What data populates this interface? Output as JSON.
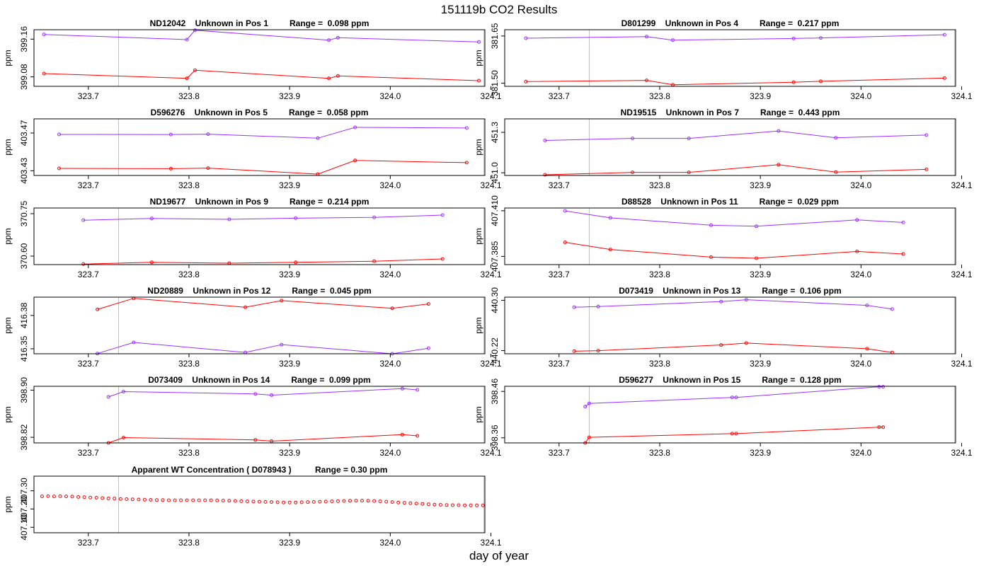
{
  "page_title": "151119b  CO2 Results",
  "x_axis_label": "day of year",
  "colors": {
    "upper": "#9b30ff",
    "lower": "#ff0000",
    "ref_line": "#bebebe",
    "axis": "#000000"
  },
  "chart_data": [
    {
      "type": "line",
      "title": "ND12042    Unknown in Pos 1         Range =  0.098 ppm",
      "ylabel": "ppm",
      "xlim": [
        323.646,
        324.094
      ],
      "ylim": [
        399.06,
        399.18
      ],
      "xticks": [
        "323.7",
        "323.8",
        "323.9",
        "324.0",
        "324.1"
      ],
      "yticks": [
        "399.08",
        "399.16"
      ],
      "ref_lines": [
        323.73,
        324.093
      ],
      "series": [
        {
          "name": "upper",
          "x": [
            323.656,
            323.798,
            323.806,
            323.939,
            323.948,
            324.088
          ],
          "y": [
            399.17,
            399.159,
            399.179,
            399.158,
            399.163,
            399.154
          ]
        },
        {
          "name": "lower",
          "x": [
            323.656,
            323.798,
            323.806,
            323.939,
            323.948,
            324.088
          ],
          "y": [
            399.087,
            399.077,
            399.094,
            399.077,
            399.082,
            399.072
          ]
        }
      ]
    },
    {
      "type": "line",
      "title": "D801299    Unknown in Pos 4         Range =  0.217 ppm",
      "ylabel": "ppm",
      "xlim": [
        323.646,
        324.094
      ],
      "ylim": [
        381.49,
        381.67
      ],
      "xticks": [
        "323.7",
        "323.8",
        "323.9",
        "324.0",
        "324.1"
      ],
      "yticks": [
        "381.50",
        "381.65"
      ],
      "ref_lines": [
        323.73,
        324.093
      ],
      "series": [
        {
          "name": "upper",
          "x": [
            323.667,
            323.787,
            323.813,
            323.933,
            323.96,
            324.083
          ],
          "y": [
            381.643,
            381.648,
            381.637,
            381.642,
            381.644,
            381.654
          ]
        },
        {
          "name": "lower",
          "x": [
            323.667,
            323.787,
            323.813,
            323.933,
            323.96,
            324.083
          ],
          "y": [
            381.505,
            381.509,
            381.495,
            381.503,
            381.506,
            381.516
          ]
        }
      ]
    },
    {
      "type": "line",
      "title": "D596276    Unknown in Pos 5         Range =  0.058 ppm",
      "ylabel": "ppm",
      "xlim": [
        323.646,
        324.094
      ],
      "ylim": [
        403.425,
        403.485
      ],
      "xticks": [
        "323.7",
        "323.8",
        "323.9",
        "324.0",
        "324.1"
      ],
      "yticks": [
        "403.43",
        "403.47"
      ],
      "ref_lines": [
        323.73,
        324.093
      ],
      "series": [
        {
          "name": "upper",
          "x": [
            323.671,
            323.782,
            323.819,
            323.928,
            323.965,
            324.076
          ],
          "y": [
            403.4685,
            403.4684,
            403.4688,
            403.4645,
            403.476,
            403.4753
          ]
        },
        {
          "name": "lower",
          "x": [
            323.671,
            323.782,
            323.819,
            323.928,
            323.965,
            324.076
          ],
          "y": [
            403.4325,
            403.4322,
            403.4328,
            403.4264,
            403.4409,
            403.4386
          ]
        }
      ]
    },
    {
      "type": "line",
      "title": "ND19515    Unknown in Pos 7         Range =  0.443 ppm",
      "ylabel": "ppm",
      "xlim": [
        323.646,
        324.094
      ],
      "ylim": [
        450.98,
        451.4
      ],
      "xticks": [
        "323.7",
        "323.8",
        "323.9",
        "324.0",
        "324.1"
      ],
      "yticks": [
        "451.0",
        "451.3"
      ],
      "ref_lines": [
        323.73,
        324.093
      ],
      "series": [
        {
          "name": "upper",
          "x": [
            323.686,
            323.773,
            323.829,
            323.918,
            323.975,
            324.065
          ],
          "y": [
            451.24,
            451.255,
            451.255,
            451.31,
            451.26,
            451.28
          ]
        },
        {
          "name": "lower",
          "x": [
            323.686,
            323.773,
            323.829,
            323.918,
            323.975,
            324.065
          ],
          "y": [
            450.985,
            451.003,
            451.003,
            451.06,
            451.005,
            451.025
          ]
        }
      ]
    },
    {
      "type": "line",
      "title": "ND19677    Unknown in Pos 9         Range =  0.214 ppm",
      "ylabel": "ppm",
      "xlim": [
        323.646,
        324.094
      ],
      "ylim": [
        370.57,
        370.77
      ],
      "xticks": [
        "323.7",
        "323.8",
        "323.9",
        "324.0",
        "324.1"
      ],
      "yticks": [
        "370.60",
        "370.75"
      ],
      "ref_lines": [
        323.73,
        324.093
      ],
      "series": [
        {
          "name": "upper",
          "x": [
            323.695,
            323.763,
            323.84,
            323.906,
            323.984,
            324.052
          ],
          "y": [
            370.727,
            370.733,
            370.73,
            370.734,
            370.737,
            370.745
          ]
        },
        {
          "name": "lower",
          "x": [
            323.695,
            323.763,
            323.84,
            323.906,
            323.984,
            324.052
          ],
          "y": [
            370.572,
            370.578,
            370.575,
            370.578,
            370.582,
            370.59
          ]
        }
      ]
    },
    {
      "type": "line",
      "title": "D88528    Unknown in Pos 11         Range =  0.029 ppm",
      "ylabel": "ppm",
      "xlim": [
        323.646,
        324.094
      ],
      "ylim": [
        407.3805,
        407.4115
      ],
      "xticks": [
        "323.7",
        "323.8",
        "323.9",
        "324.0",
        "324.1"
      ],
      "yticks": [
        "407.385",
        "407.410"
      ],
      "ref_lines": [
        323.73,
        324.093
      ],
      "series": [
        {
          "name": "upper",
          "x": [
            323.706,
            323.751,
            323.851,
            323.896,
            323.996,
            324.042
          ],
          "y": [
            407.4099,
            407.4061,
            407.4021,
            407.4015,
            407.405,
            407.4036
          ]
        },
        {
          "name": "lower",
          "x": [
            323.706,
            323.751,
            323.851,
            323.896,
            323.996,
            324.042
          ],
          "y": [
            407.3927,
            407.3888,
            407.3846,
            407.384,
            407.3877,
            407.3863
          ]
        }
      ]
    },
    {
      "type": "line",
      "title": "ND20889    Unknown in Pos 12         Range =  0.045 ppm",
      "ylabel": "ppm",
      "xlim": [
        323.646,
        324.094
      ],
      "ylim": [
        416.3455,
        416.3965
      ],
      "xticks": [
        "323.7",
        "323.8",
        "323.9",
        "324.0",
        "324.1"
      ],
      "yticks": [
        "416.35",
        "416.38"
      ],
      "ref_lines": [
        323.73,
        324.093
      ],
      "series": [
        {
          "name": "upper",
          "x": [
            323.709,
            323.745,
            323.856,
            323.892,
            324.002,
            324.038
          ],
          "y": [
            416.3457,
            416.3557,
            416.3467,
            416.3537,
            416.3455,
            416.3505
          ]
        },
        {
          "name": "lower",
          "x": [
            323.709,
            323.745,
            323.856,
            323.892,
            324.002,
            324.038
          ],
          "y": [
            416.3854,
            416.3954,
            416.3874,
            416.3934,
            416.3864,
            416.3904
          ]
        }
      ]
    },
    {
      "type": "line",
      "title": "D073419    Unknown in Pos 13         Range =  0.106 ppm",
      "ylabel": "ppm",
      "xlim": [
        323.646,
        324.094
      ],
      "ylim": [
        440.215,
        440.305
      ],
      "xticks": [
        "323.7",
        "323.8",
        "323.9",
        "324.0",
        "324.1"
      ],
      "yticks": [
        "440.22",
        "440.30"
      ],
      "ref_lines": [
        323.73,
        324.093
      ],
      "series": [
        {
          "name": "upper",
          "x": [
            323.715,
            323.739,
            323.861,
            323.886,
            324.006,
            324.031
          ],
          "y": [
            440.289,
            440.29,
            440.298,
            440.301,
            440.292,
            440.286
          ]
        },
        {
          "name": "lower",
          "x": [
            323.715,
            323.739,
            323.861,
            323.886,
            324.006,
            324.031
          ],
          "y": [
            440.219,
            440.22,
            440.229,
            440.232,
            440.223,
            440.217
          ]
        }
      ]
    },
    {
      "type": "line",
      "title": "D073409    Unknown in Pos 14         Range =  0.099 ppm",
      "ylabel": "ppm",
      "xlim": [
        323.646,
        324.094
      ],
      "ylim": [
        398.8105,
        398.9065
      ],
      "xticks": [
        "323.7",
        "323.8",
        "323.9",
        "324.0",
        "324.1"
      ],
      "yticks": [
        "398.82",
        "398.90"
      ],
      "ref_lines": [
        323.73,
        324.093
      ],
      "series": [
        {
          "name": "upper",
          "x": [
            323.72,
            323.735,
            323.866,
            323.882,
            324.012,
            324.027
          ],
          "y": [
            398.8885,
            398.8975,
            398.8935,
            398.8915,
            398.9025,
            398.9005
          ]
        },
        {
          "name": "lower",
          "x": [
            323.72,
            323.735,
            323.866,
            323.882,
            324.012,
            324.027
          ],
          "y": [
            398.8105,
            398.8195,
            398.8155,
            398.8135,
            398.8245,
            398.8225
          ]
        }
      ]
    },
    {
      "type": "line",
      "title": "D596277    Unknown in Pos 15         Range =  0.128 ppm",
      "ylabel": "ppm",
      "xlim": [
        323.646,
        324.094
      ],
      "ylim": [
        398.349,
        398.471
      ],
      "xticks": [
        "323.7",
        "323.8",
        "323.9",
        "324.0",
        "324.1"
      ],
      "yticks": [
        "398.36",
        "398.46"
      ],
      "ref_lines": [
        323.73,
        324.093
      ],
      "series": [
        {
          "name": "upper",
          "x": [
            323.726,
            323.73,
            323.872,
            323.876,
            324.018,
            324.022
          ],
          "y": [
            398.4271,
            398.4341,
            398.4471,
            398.4471,
            398.4701,
            398.4701
          ]
        },
        {
          "name": "lower",
          "x": [
            323.726,
            323.73,
            323.872,
            323.876,
            324.018,
            324.022
          ],
          "y": [
            398.349,
            398.361,
            398.369,
            398.369,
            398.383,
            398.383
          ]
        }
      ]
    },
    {
      "type": "scatter",
      "title": "Apparent WT Concentration ( D078943 )          Range = 0.30 ppm",
      "ylabel": "ppm",
      "xlim": [
        323.646,
        324.094
      ],
      "ylim": [
        407.07,
        407.38
      ],
      "xticks": [
        "323.7",
        "323.8",
        "323.9",
        "324.0",
        "324.1"
      ],
      "yticks": [
        "407.10",
        "407.20",
        "407.30"
      ],
      "ref_lines": [
        323.73,
        324.093
      ],
      "series": [
        {
          "name": "wt",
          "x": [
            323.654,
            323.66,
            323.666,
            323.672,
            323.678,
            323.684,
            323.69,
            323.696,
            323.702,
            323.708,
            323.714,
            323.72,
            323.726,
            323.732,
            323.738,
            323.744,
            323.75,
            323.756,
            323.762,
            323.768,
            323.774,
            323.78,
            323.786,
            323.792,
            323.798,
            323.804,
            323.81,
            323.816,
            323.822,
            323.828,
            323.834,
            323.84,
            323.846,
            323.852,
            323.858,
            323.864,
            323.87,
            323.876,
            323.882,
            323.888,
            323.894,
            323.9,
            323.906,
            323.912,
            323.918,
            323.924,
            323.93,
            323.936,
            323.942,
            323.948,
            323.954,
            323.96,
            323.966,
            323.972,
            323.978,
            323.984,
            323.99,
            323.996,
            324.002,
            324.008,
            324.014,
            324.02,
            324.026,
            324.032,
            324.038,
            324.044,
            324.05,
            324.056,
            324.062,
            324.068,
            324.074,
            324.08,
            324.086,
            324.092
          ],
          "y": [
            407.269,
            407.27,
            407.269,
            407.27,
            407.269,
            407.268,
            407.266,
            407.265,
            407.263,
            407.262,
            407.26,
            407.258,
            407.257,
            407.255,
            407.254,
            407.253,
            407.252,
            407.251,
            407.25,
            407.249,
            407.249,
            407.248,
            407.248,
            407.248,
            407.248,
            407.248,
            407.248,
            407.248,
            407.248,
            407.247,
            407.246,
            407.245,
            407.244,
            407.243,
            407.242,
            407.241,
            407.24,
            407.239,
            407.238,
            407.237,
            407.236,
            407.236,
            407.236,
            407.237,
            407.238,
            407.239,
            407.24,
            407.241,
            407.242,
            407.243,
            407.244,
            407.245,
            407.246,
            407.246,
            407.245,
            407.244,
            407.242,
            407.24,
            407.238,
            407.236,
            407.234,
            407.232,
            407.23,
            407.228,
            407.226,
            407.224,
            407.223,
            407.222,
            407.221,
            407.221,
            407.22,
            407.22,
            407.22,
            407.22
          ]
        }
      ]
    }
  ]
}
